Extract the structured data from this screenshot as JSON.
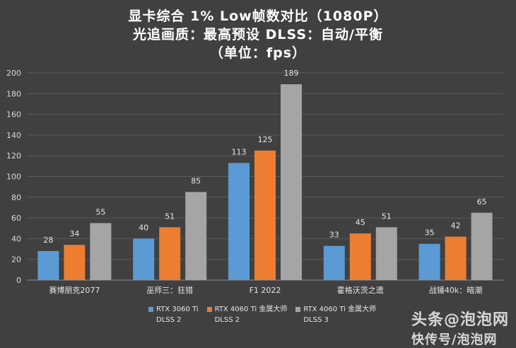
{
  "chart_data": {
    "type": "bar",
    "title_lines": [
      "显卡综合 1% Low帧数对比（1080P）",
      "光追画质：最高预设     DLSS：自动/平衡",
      "（单位：fps）"
    ],
    "categories": [
      "赛博朋克2077",
      "巫师三：狂猎",
      "F1 2022",
      "霍格沃茨之遗",
      "战锤40k：暗潮"
    ],
    "series": [
      {
        "name": "RTX 3060 Ti DLSS 2",
        "label_lines": [
          "RTX 3060 Ti",
          "DLSS 2"
        ],
        "color": "#5b9bd5",
        "values": [
          28,
          40,
          113,
          33,
          35
        ]
      },
      {
        "name": "RTX 4060 Ti 金属大师 DLSS 2",
        "label_lines": [
          "RTX 4060 Ti 金属大师",
          "DLSS 2"
        ],
        "color": "#ed7d31",
        "values": [
          34,
          51,
          125,
          45,
          42
        ]
      },
      {
        "name": "RTX 4060 Ti 金属大师 DLSS 3",
        "label_lines": [
          "RTX 4060 Ti 金属大师",
          "DLSS 3"
        ],
        "color": "#a5a5a5",
        "values": [
          55,
          85,
          189,
          51,
          65
        ]
      }
    ],
    "ylim": [
      0,
      200
    ],
    "yticks": [
      0,
      20,
      40,
      60,
      80,
      100,
      120,
      140,
      160,
      180,
      200
    ],
    "grid": true,
    "legend_position": "bottom"
  },
  "watermark": {
    "line1": "头条@泡泡网",
    "line2": "快传号/泡泡网"
  }
}
